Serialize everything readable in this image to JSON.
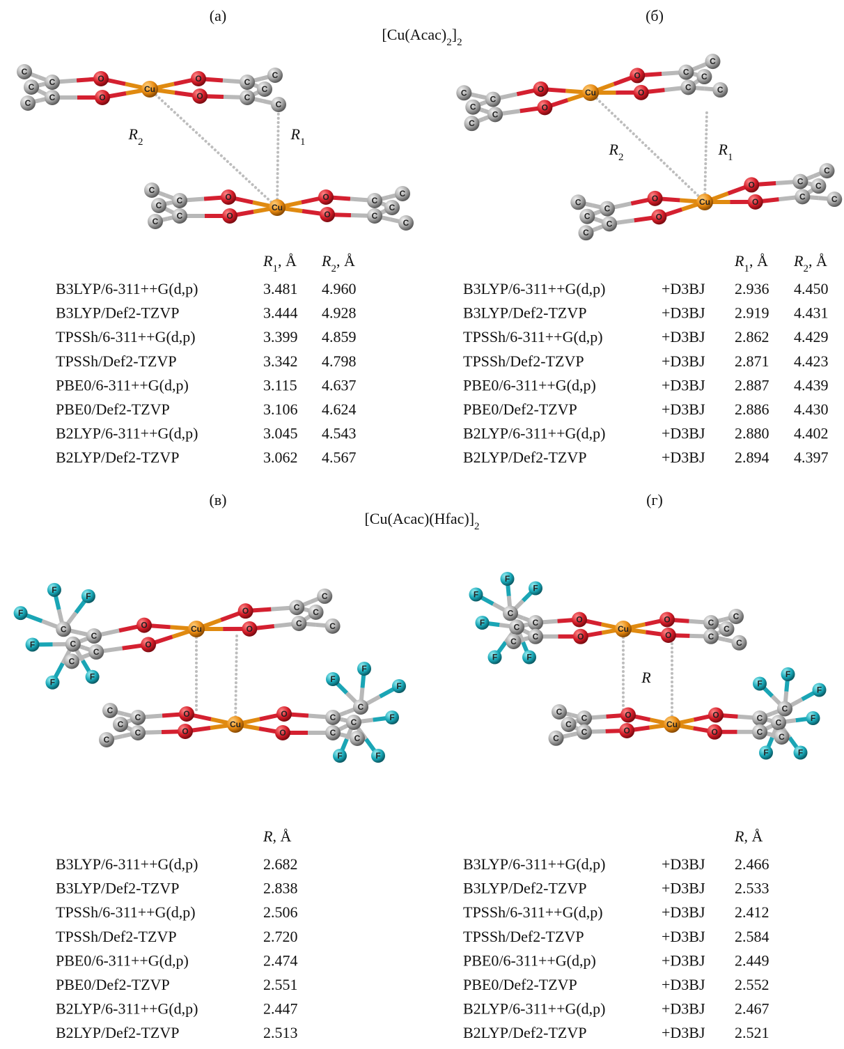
{
  "panels": [
    {
      "label": "(a)",
      "molecule": {
        "layers": [
          {
            "atoms": [
              "C",
              "C",
              "C",
              "C",
              "C",
              "O",
              "O",
              "Cu",
              "O",
              "O",
              "C",
              "C",
              "C",
              "C",
              "C"
            ]
          },
          {
            "atoms": [
              "C",
              "C",
              "C",
              "C",
              "C",
              "O",
              "O",
              "Cu",
              "O",
              "O",
              "C",
              "C",
              "C",
              "C",
              "C"
            ]
          }
        ]
      },
      "distance_labels": [
        {
          "symbol": "R",
          "subscript": "2"
        },
        {
          "symbol": "R",
          "subscript": "1"
        }
      ],
      "table": {
        "header": [
          {
            "symbol": "R",
            "subscript": "1",
            "unit": ", Å"
          },
          {
            "symbol": "R",
            "subscript": "2",
            "unit": ", Å"
          }
        ],
        "rows": [
          [
            "B3LYP/6-311++G(d,p)",
            "3.481",
            "4.960"
          ],
          [
            "B3LYP/Def2-TZVP",
            "3.444",
            "4.928"
          ],
          [
            "TPSSh/6-311++G(d,p)",
            "3.399",
            "4.859"
          ],
          [
            "TPSSh/Def2-TZVP",
            "3.342",
            "4.798"
          ],
          [
            "PBE0/6-311++G(d,p)",
            "3.115",
            "4.637"
          ],
          [
            "PBE0/Def2-TZVP",
            "3.106",
            "4.624"
          ],
          [
            "B2LYP/6-311++G(d,p)",
            "3.045",
            "4.543"
          ],
          [
            "B2LYP/Def2-TZVP",
            "3.062",
            "4.567"
          ]
        ]
      }
    },
    {
      "label": "(б)",
      "molecule": {
        "layers": [
          {
            "atoms": [
              "C",
              "C",
              "C",
              "C",
              "C",
              "O",
              "O",
              "Cu",
              "O",
              "O",
              "C",
              "C",
              "C",
              "C",
              "C"
            ]
          },
          {
            "atoms": [
              "C",
              "C",
              "C",
              "C",
              "C",
              "O",
              "O",
              "Cu",
              "O",
              "O",
              "C",
              "C",
              "C",
              "C",
              "C"
            ]
          }
        ]
      },
      "distance_labels": [
        {
          "symbol": "R",
          "subscript": "2"
        },
        {
          "symbol": "R",
          "subscript": "1"
        }
      ],
      "table": {
        "header": [
          {
            "symbol": "R",
            "subscript": "1",
            "unit": ", Å"
          },
          {
            "symbol": "R",
            "subscript": "2",
            "unit": ", Å"
          }
        ],
        "rows": [
          [
            "B3LYP/6-311++G(d,p)",
            "+D3BJ",
            "2.936",
            "4.450"
          ],
          [
            "B3LYP/Def2-TZVP",
            "+D3BJ",
            "2.919",
            "4.431"
          ],
          [
            "TPSSh/6-311++G(d,p)",
            "+D3BJ",
            "2.862",
            "4.429"
          ],
          [
            "TPSSh/Def2-TZVP",
            "+D3BJ",
            "2.871",
            "4.423"
          ],
          [
            "PBE0/6-311++G(d,p)",
            "+D3BJ",
            "2.887",
            "4.439"
          ],
          [
            "PBE0/Def2-TZVP",
            "+D3BJ",
            "2.886",
            "4.430"
          ],
          [
            "B2LYP/6-311++G(d,p)",
            "+D3BJ",
            "2.880",
            "4.402"
          ],
          [
            "B2LYP/Def2-TZVP",
            "+D3BJ",
            "2.894",
            "4.397"
          ]
        ]
      }
    },
    {
      "label": "(в)",
      "molecule": {
        "layers": [
          {
            "atoms": [
              "C",
              "C",
              "C",
              "C",
              "C",
              "O",
              "O",
              "Cu",
              "O",
              "O",
              "C",
              "C",
              "C",
              "C",
              "C",
              "F",
              "F",
              "F",
              "F",
              "F",
              "F"
            ]
          },
          {
            "atoms": [
              "C",
              "C",
              "C",
              "C",
              "C",
              "O",
              "O",
              "Cu",
              "O",
              "O",
              "C",
              "C",
              "C",
              "C",
              "C",
              "F",
              "F",
              "F",
              "F",
              "F",
              "F"
            ]
          }
        ]
      },
      "distance_labels": [],
      "table": {
        "header": [
          {
            "symbol": "R",
            "unit": ", Å"
          }
        ],
        "rows": [
          [
            "B3LYP/6-311++G(d,p)",
            "2.682"
          ],
          [
            "B3LYP/Def2-TZVP",
            "2.838"
          ],
          [
            "TPSSh/6-311++G(d,p)",
            "2.506"
          ],
          [
            "TPSSh/Def2-TZVP",
            "2.720"
          ],
          [
            "PBE0/6-311++G(d,p)",
            "2.474"
          ],
          [
            "PBE0/Def2-TZVP",
            "2.551"
          ],
          [
            "B2LYP/6-311++G(d,p)",
            "2.447"
          ],
          [
            "B2LYP/Def2-TZVP",
            "2.513"
          ]
        ]
      }
    },
    {
      "label": "(г)",
      "molecule": {
        "layers": [
          {
            "atoms": [
              "C",
              "C",
              "C",
              "C",
              "C",
              "O",
              "O",
              "Cu",
              "O",
              "O",
              "C",
              "C",
              "C",
              "C",
              "C",
              "F",
              "F",
              "F",
              "F",
              "F",
              "F"
            ]
          },
          {
            "atoms": [
              "C",
              "C",
              "C",
              "C",
              "C",
              "O",
              "O",
              "Cu",
              "O",
              "O",
              "C",
              "C",
              "C",
              "C",
              "C",
              "F",
              "F",
              "F",
              "F",
              "F",
              "F"
            ]
          }
        ]
      },
      "distance_labels": [
        {
          "symbol": "R"
        }
      ],
      "table": {
        "header": [
          {
            "symbol": "R",
            "unit": ", Å"
          }
        ],
        "rows": [
          [
            "B3LYP/6-311++G(d,p)",
            "+D3BJ",
            "2.466"
          ],
          [
            "B3LYP/Def2-TZVP",
            "+D3BJ",
            "2.533"
          ],
          [
            "TPSSh/6-311++G(d,p)",
            "+D3BJ",
            "2.412"
          ],
          [
            "TPSSh/Def2-TZVP",
            "+D3BJ",
            "2.584"
          ],
          [
            "PBE0/6-311++G(d,p)",
            "+D3BJ",
            "2.449"
          ],
          [
            "PBE0/Def2-TZVP",
            "+D3BJ",
            "2.552"
          ],
          [
            "B2LYP/6-311++G(d,p)",
            "+D3BJ",
            "2.467"
          ],
          [
            "B2LYP/Def2-TZVP",
            "+D3BJ",
            "2.521"
          ]
        ]
      }
    }
  ],
  "titles": [
    {
      "parts": [
        {
          "text": "[Cu(Acac)"
        },
        {
          "sub": "2"
        },
        {
          "text": "]"
        },
        {
          "sub": "2"
        }
      ]
    },
    {
      "parts": [
        {
          "text": "[Cu(Acac)(Hfac)]"
        },
        {
          "sub": "2"
        }
      ]
    }
  ]
}
